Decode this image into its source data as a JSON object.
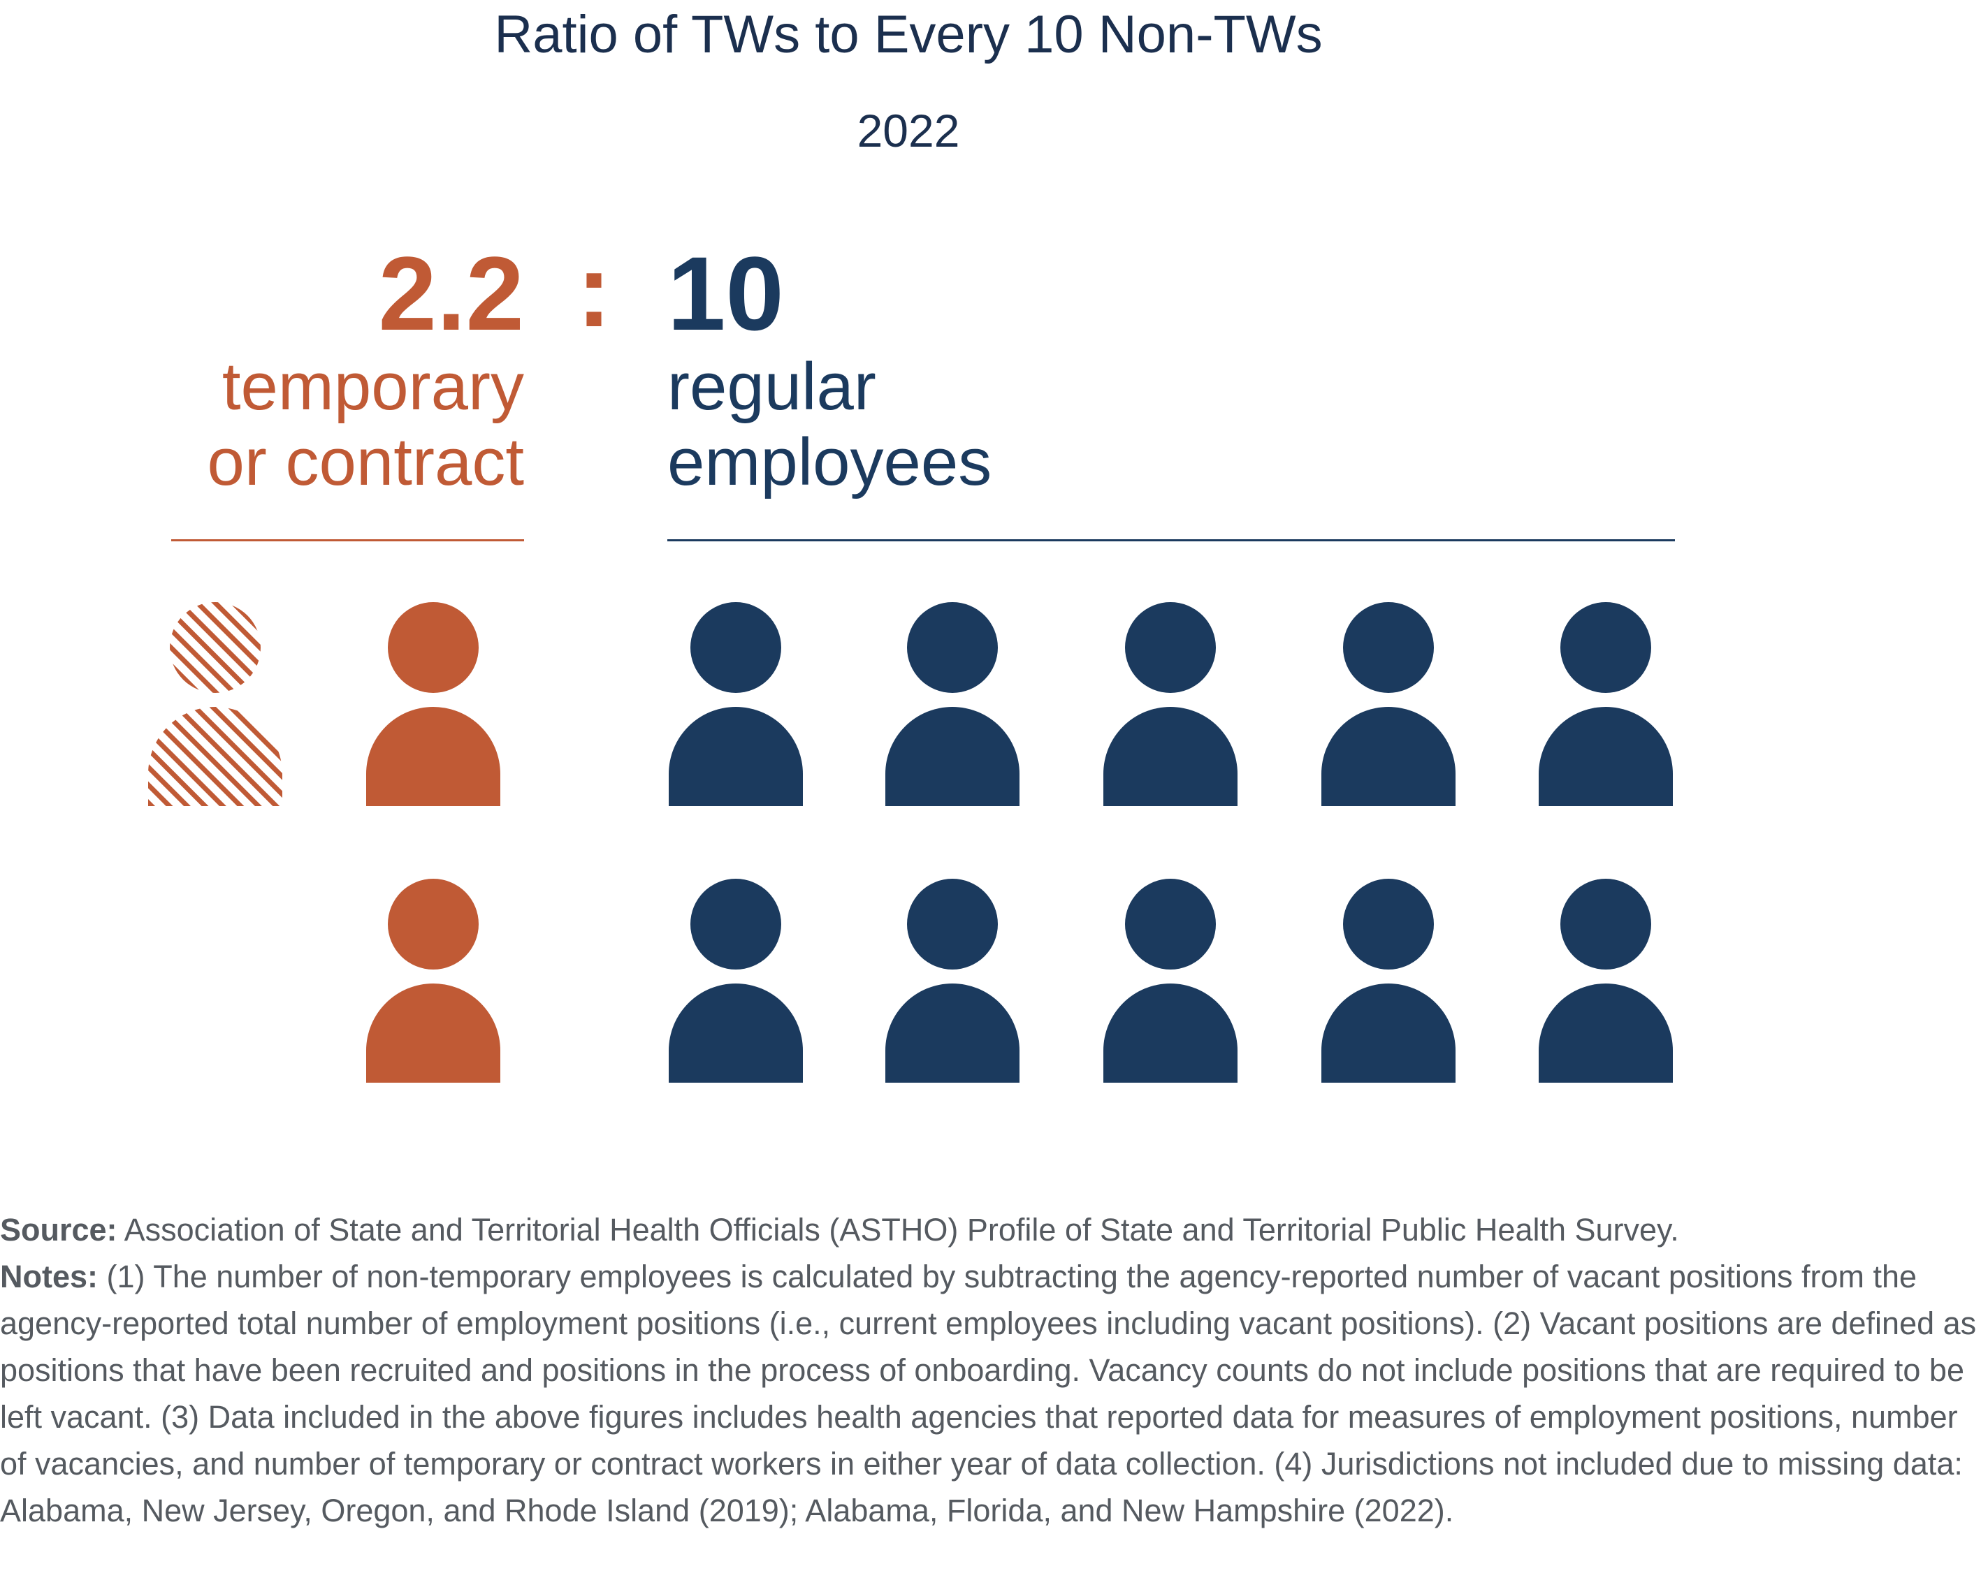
{
  "chart_data": {
    "type": "pictogram",
    "title": "Ratio of TWs to Every 10 Non-TWs",
    "subtitle": "2022",
    "ratio": {
      "left_value_text": "2.2",
      "separator": ":",
      "right_value_text": "10",
      "left_label": [
        "temporary",
        "or contract"
      ],
      "right_label": [
        "regular",
        "employees"
      ]
    },
    "series": [
      {
        "name": "temporary or contract",
        "value": 2.2,
        "color": "#c05a35"
      },
      {
        "name": "regular employees",
        "value": 10,
        "color": "#1b3a5e"
      }
    ]
  },
  "footer": {
    "source_label": "Source:",
    "source_text": " Association of State and Territorial Health Officials (ASTHO) Profile of State and Territorial Public Health Survey.",
    "notes_label": "Notes:",
    "notes_text": " (1) The number of non-temporary employees is calculated by subtracting the agency-reported number of vacant positions from the agency-reported total number of employment positions (i.e., current employees including vacant positions). (2) Vacant positions are defined as positions that have been recruited and positions in the process of onboarding. Vacancy counts do not include positions that are required to be left vacant. (3) Data included in the above figures includes health agencies that reported data for measures of employment positions, number of vacancies, and number of temporary or contract workers in either year of data collection. (4) Jurisdictions not included due to missing data: Alabama, New Jersey, Oregon, and Rhode Island (2019); Alabama, Florida, and New Hampshire (2022)."
  }
}
